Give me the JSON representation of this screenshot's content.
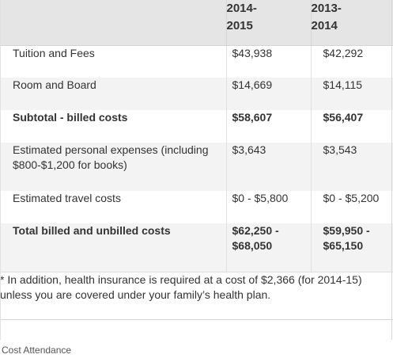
{
  "table": {
    "headers": [
      "",
      "2014-\n2015",
      "2013-\n2014"
    ],
    "header_lines": [
      [
        "2014-",
        "2015"
      ],
      [
        "2013-",
        "2014"
      ]
    ],
    "rows": [
      {
        "label": "Tuition and Fees",
        "v1": "$43,938",
        "v2": "$42,292",
        "bold": false
      },
      {
        "label": "Room and Board",
        "v1": "$14,669",
        "v2": "$14,115",
        "bold": false
      },
      {
        "label": "Subtotal - billed costs",
        "v1": "$58,607",
        "v2": "$56,407",
        "bold": true
      },
      {
        "label": "Estimated personal expenses (including $800-$1,200 for books)",
        "v1": "$3,643",
        "v2": "$3,543",
        "bold": false
      },
      {
        "label": "Estimated travel costs",
        "v1": "$0 - $5,800",
        "v2": "$0 - $5,200",
        "bold": false
      },
      {
        "label": "Total billed and unbilled costs",
        "v1": "$62,250 - $68,050",
        "v2": "$59,950 - $65,150",
        "bold": true
      }
    ],
    "footnote": "* In addition, health insurance is required at a cost of $2,366 (for 2014-15) unless you are covered under your family’s health plan."
  },
  "caption": "Cost Attendance"
}
